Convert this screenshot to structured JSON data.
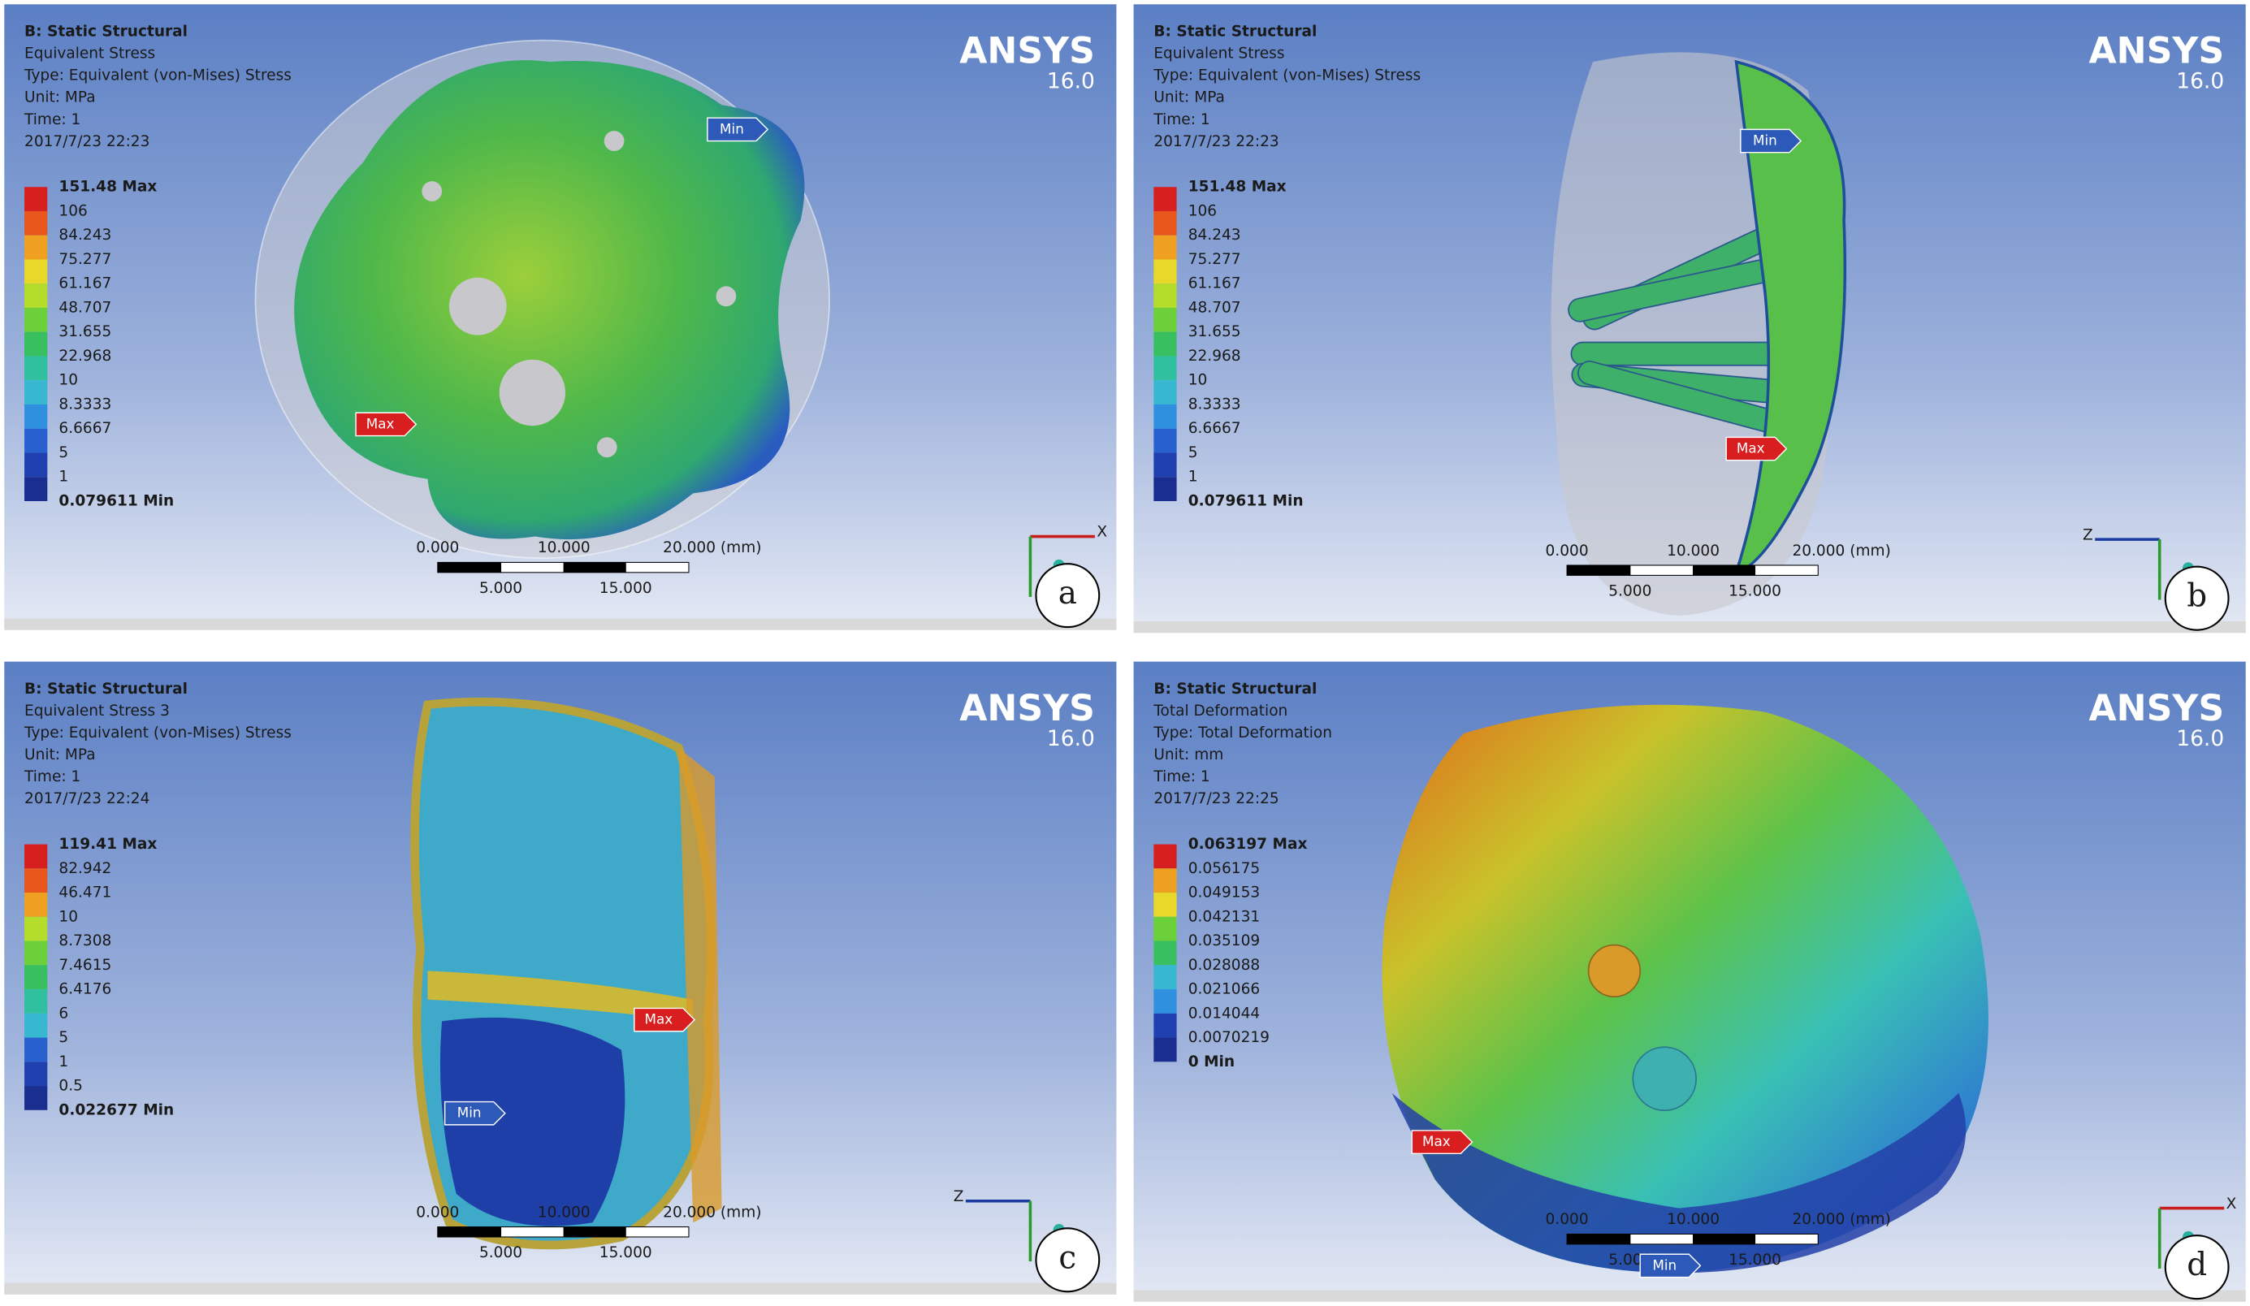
{
  "panels": [
    {
      "letter": "a",
      "brand": "ANSYS",
      "version": "16.0",
      "header": [
        "B: Static Structural",
        "Equivalent Stress",
        "Type: Equivalent (von-Mises) Stress",
        "Unit: MPa",
        "Time: 1",
        "2017/7/23 22:23"
      ],
      "legend": [
        "151.48 Max",
        "106",
        "84.243",
        "75.277",
        "61.167",
        "48.707",
        "31.655",
        "22.968",
        "10",
        "8.3333",
        "6.6667",
        "5",
        "1",
        "0.079611 Min"
      ],
      "scale_top": [
        "0.000",
        "10.000",
        "20.000 (mm)"
      ],
      "scale_bottom": [
        "5.000",
        "15.000"
      ],
      "max": "Max",
      "min": "Min",
      "triad": "X"
    },
    {
      "letter": "b",
      "brand": "ANSYS",
      "version": "16.0",
      "header": [
        "B: Static Structural",
        "Equivalent Stress",
        "Type: Equivalent (von-Mises) Stress",
        "Unit: MPa",
        "Time: 1",
        "2017/7/23 22:23"
      ],
      "legend": [
        "151.48 Max",
        "106",
        "84.243",
        "75.277",
        "61.167",
        "48.707",
        "31.655",
        "22.968",
        "10",
        "8.3333",
        "6.6667",
        "5",
        "1",
        "0.079611 Min"
      ],
      "scale_top": [
        "0.000",
        "10.000",
        "20.000 (mm)"
      ],
      "scale_bottom": [
        "5.000",
        "15.000"
      ],
      "max": "Max",
      "min": "Min",
      "triad": "Z"
    },
    {
      "letter": "c",
      "brand": "ANSYS",
      "version": "16.0",
      "header": [
        "B: Static Structural",
        "Equivalent Stress 3",
        "Type: Equivalent (von-Mises) Stress",
        "Unit: MPa",
        "Time: 1",
        "2017/7/23 22:24"
      ],
      "legend": [
        "119.41 Max",
        "82.942",
        "46.471",
        "10",
        "8.7308",
        "7.4615",
        "6.4176",
        "6",
        "5",
        "1",
        "0.5",
        "0.022677 Min"
      ],
      "scale_top": [
        "0.000",
        "10.000",
        "20.000 (mm)"
      ],
      "scale_bottom": [
        "5.000",
        "15.000"
      ],
      "max": "Max",
      "min": "Min",
      "triad": "Z"
    },
    {
      "letter": "d",
      "brand": "ANSYS",
      "version": "16.0",
      "header": [
        "B: Static Structural",
        "Total Deformation",
        "Type: Total Deformation",
        "Unit: mm",
        "Time: 1",
        "2017/7/23 22:25"
      ],
      "legend": [
        "0.063197 Max",
        "0.056175",
        "0.049153",
        "0.042131",
        "0.035109",
        "0.028088",
        "0.021066",
        "0.014044",
        "0.0070219",
        "0 Min"
      ],
      "scale_top": [
        "0.000",
        "10.000",
        "20.000 (mm)"
      ],
      "scale_bottom": [
        "5.000",
        "15.000"
      ],
      "max": "Max",
      "min": "Min",
      "triad": "X"
    }
  ]
}
